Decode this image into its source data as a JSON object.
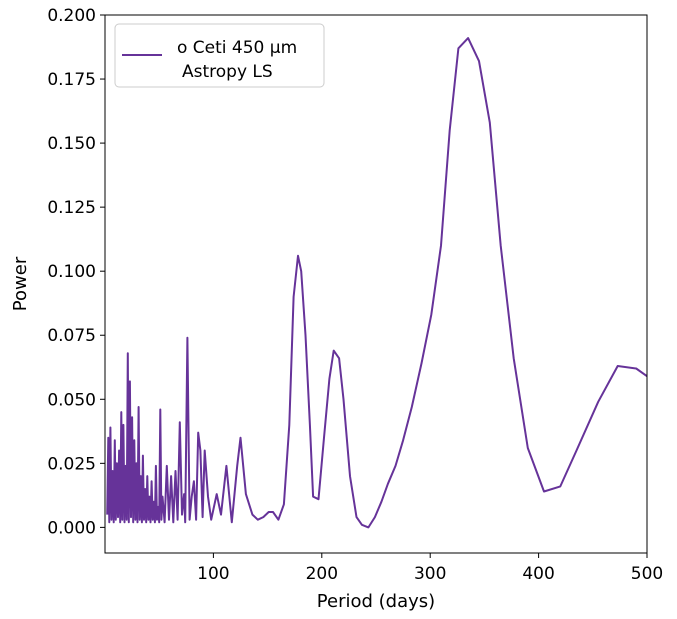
{
  "chart_data": {
    "type": "line",
    "xlabel": "Period (days)",
    "ylabel": "Power",
    "xlim": [
      0,
      500
    ],
    "ylim": [
      -0.01,
      0.2
    ],
    "grid": false,
    "legend_position": "top-left",
    "x_ticks": [
      100,
      200,
      300,
      400,
      500
    ],
    "x_tick_labels": [
      "100",
      "200",
      "300",
      "400",
      "500"
    ],
    "y_ticks": [
      0.0,
      0.025,
      0.05,
      0.075,
      0.1,
      0.125,
      0.15,
      0.175,
      0.2
    ],
    "y_tick_labels": [
      "0.000",
      "0.025",
      "0.050",
      "0.075",
      "0.100",
      "0.125",
      "0.150",
      "0.175",
      "0.200"
    ],
    "series": [
      {
        "name": "o Ceti 450 μm Astropy LS",
        "legend_lines": [
          "o Ceti 450 μm",
          "Astropy LS"
        ],
        "color": "#663399",
        "points": [
          [
            2,
            0.005
          ],
          [
            3,
            0.035
          ],
          [
            4,
            0.002
          ],
          [
            5,
            0.039
          ],
          [
            6,
            0.003
          ],
          [
            7,
            0.022
          ],
          [
            8,
            0.002
          ],
          [
            9,
            0.034
          ],
          [
            10,
            0.003
          ],
          [
            11,
            0.025
          ],
          [
            12,
            0.004
          ],
          [
            13,
            0.03
          ],
          [
            14,
            0.002
          ],
          [
            15,
            0.045
          ],
          [
            16,
            0.003
          ],
          [
            17,
            0.04
          ],
          [
            18,
            0.002
          ],
          [
            19,
            0.024
          ],
          [
            20,
            0.003
          ],
          [
            21,
            0.068
          ],
          [
            22,
            0.002
          ],
          [
            23,
            0.057
          ],
          [
            24,
            0.004
          ],
          [
            25,
            0.043
          ],
          [
            26,
            0.002
          ],
          [
            27,
            0.034
          ],
          [
            28,
            0.003
          ],
          [
            29,
            0.025
          ],
          [
            30,
            0.002
          ],
          [
            31,
            0.047
          ],
          [
            32,
            0.003
          ],
          [
            33,
            0.02
          ],
          [
            34,
            0.002
          ],
          [
            35,
            0.028
          ],
          [
            36,
            0.003
          ],
          [
            37,
            0.015
          ],
          [
            38,
            0.002
          ],
          [
            39,
            0.02
          ],
          [
            40,
            0.003
          ],
          [
            41,
            0.012
          ],
          [
            42,
            0.002
          ],
          [
            43,
            0.018
          ],
          [
            44,
            0.003
          ],
          [
            45,
            0.01
          ],
          [
            46,
            0.002
          ],
          [
            47,
            0.024
          ],
          [
            48,
            0.003
          ],
          [
            49,
            0.008
          ],
          [
            50,
            0.002
          ],
          [
            51,
            0.046
          ],
          [
            52,
            0.003
          ],
          [
            53,
            0.012
          ],
          [
            55,
            0.002
          ],
          [
            57,
            0.024
          ],
          [
            59,
            0.003
          ],
          [
            61,
            0.02
          ],
          [
            63,
            0.002
          ],
          [
            65,
            0.022
          ],
          [
            67,
            0.003
          ],
          [
            69,
            0.041
          ],
          [
            71,
            0.005
          ],
          [
            73,
            0.013
          ],
          [
            74,
            0.002
          ],
          [
            76,
            0.074
          ],
          [
            78,
            0.003
          ],
          [
            80,
            0.012
          ],
          [
            82,
            0.018
          ],
          [
            84,
            0.003
          ],
          [
            86,
            0.037
          ],
          [
            88,
            0.03
          ],
          [
            90,
            0.004
          ],
          [
            92,
            0.03
          ],
          [
            95,
            0.012
          ],
          [
            98,
            0.003
          ],
          [
            103,
            0.013
          ],
          [
            107,
            0.005
          ],
          [
            112,
            0.024
          ],
          [
            117,
            0.002
          ],
          [
            122,
            0.024
          ],
          [
            125,
            0.035
          ],
          [
            130,
            0.013
          ],
          [
            136,
            0.005
          ],
          [
            141,
            0.003
          ],
          [
            146,
            0.004
          ],
          [
            151,
            0.006
          ],
          [
            155,
            0.006
          ],
          [
            160,
            0.003
          ],
          [
            165,
            0.009
          ],
          [
            170,
            0.04
          ],
          [
            174,
            0.09
          ],
          [
            178,
            0.106
          ],
          [
            181,
            0.1
          ],
          [
            185,
            0.075
          ],
          [
            189,
            0.04
          ],
          [
            192,
            0.012
          ],
          [
            197,
            0.011
          ],
          [
            202,
            0.035
          ],
          [
            207,
            0.058
          ],
          [
            211,
            0.069
          ],
          [
            216,
            0.066
          ],
          [
            220,
            0.05
          ],
          [
            226,
            0.02
          ],
          [
            232,
            0.004
          ],
          [
            237,
            0.001
          ],
          [
            243,
            0.0
          ],
          [
            249,
            0.004
          ],
          [
            255,
            0.01
          ],
          [
            261,
            0.017
          ],
          [
            268,
            0.024
          ],
          [
            275,
            0.034
          ],
          [
            283,
            0.047
          ],
          [
            292,
            0.064
          ],
          [
            301,
            0.083
          ],
          [
            310,
            0.11
          ],
          [
            318,
            0.155
          ],
          [
            326,
            0.187
          ],
          [
            335,
            0.191
          ],
          [
            345,
            0.182
          ],
          [
            355,
            0.158
          ],
          [
            365,
            0.11
          ],
          [
            377,
            0.066
          ],
          [
            390,
            0.031
          ],
          [
            405,
            0.014
          ],
          [
            420,
            0.016
          ],
          [
            435,
            0.03
          ],
          [
            455,
            0.049
          ],
          [
            473,
            0.063
          ],
          [
            490,
            0.062
          ],
          [
            500,
            0.059
          ]
        ]
      }
    ]
  }
}
